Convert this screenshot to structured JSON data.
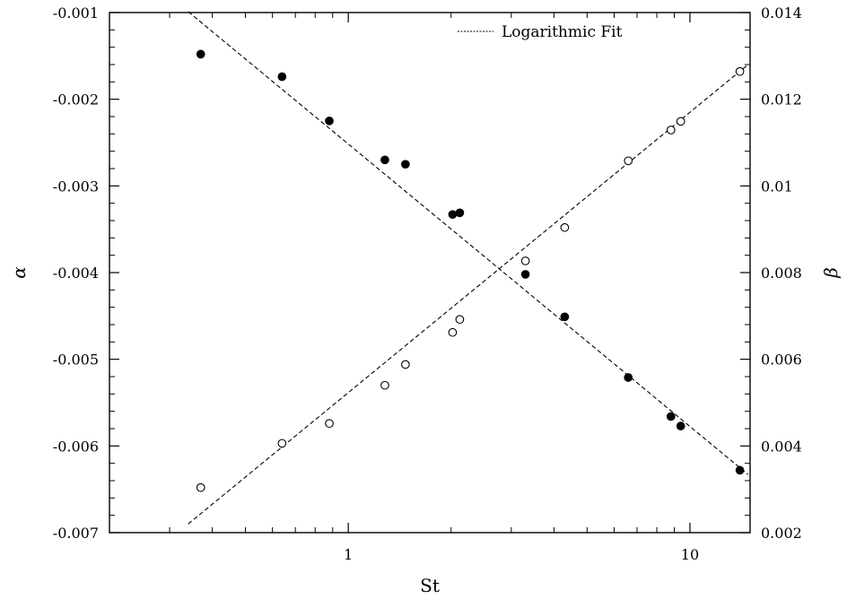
{
  "chart_data": {
    "type": "scatter",
    "xlabel": "St",
    "ylabel_left": "α",
    "ylabel_right": "β",
    "x_scale": "log",
    "xlim": [
      0.2,
      15
    ],
    "x_ticks": [
      1,
      10
    ],
    "x_tick_labels": [
      "1",
      "10"
    ],
    "ylim_left": [
      -0.007,
      -0.001
    ],
    "y_ticks_left": [
      -0.001,
      -0.002,
      -0.003,
      -0.004,
      -0.005,
      -0.006,
      -0.007
    ],
    "y_tick_labels_left": [
      "-0.001",
      "-0.002",
      "-0.003",
      "-0.004",
      "-0.005",
      "-0.006",
      "-0.007"
    ],
    "ylim_right": [
      0.002,
      0.014
    ],
    "y_ticks_right": [
      0.014,
      0.012,
      0.01,
      0.008,
      0.006,
      0.004,
      0.002
    ],
    "y_tick_labels_right": [
      "0.014",
      "0.012",
      "0.01",
      "0.008",
      "0.006",
      "0.004",
      "0.002"
    ],
    "legend": {
      "placement": "top-center",
      "entries": [
        "Logarithmic Fit"
      ]
    },
    "series": [
      {
        "marker": "filled-circle",
        "axis": "left",
        "x": [
          0.37,
          0.64,
          0.88,
          1.28,
          1.47,
          2.02,
          2.12,
          3.3,
          4.3,
          6.6,
          8.8,
          9.4,
          14.0
        ],
        "y": [
          -0.00148,
          -0.00174,
          -0.00225,
          -0.0027,
          -0.00275,
          -0.00333,
          -0.00331,
          -0.00402,
          -0.00451,
          -0.00521,
          -0.00566,
          -0.00577,
          -0.00628
        ]
      },
      {
        "marker": "open-circle",
        "axis": "right",
        "x": [
          0.37,
          0.64,
          0.88,
          1.28,
          1.47,
          2.02,
          2.12,
          3.3,
          4.3,
          6.6,
          8.8,
          9.4,
          14.0
        ],
        "y": [
          0.00304,
          0.00406,
          0.00452,
          0.0054,
          0.00588,
          0.00662,
          0.00692,
          0.00827,
          0.00904,
          0.01058,
          0.01129,
          0.01149,
          0.01264
        ]
      }
    ],
    "fits": [
      {
        "name": "Logarithmic Fit",
        "axis": "left",
        "style": "dashed",
        "x": [
          0.34,
          14.8
        ],
        "y": [
          -0.00099,
          -0.00633
        ]
      },
      {
        "name": "Logarithmic Fit",
        "axis": "right",
        "style": "dashed",
        "x": [
          0.34,
          14.8
        ],
        "y": [
          0.0022,
          0.0128
        ]
      }
    ]
  }
}
